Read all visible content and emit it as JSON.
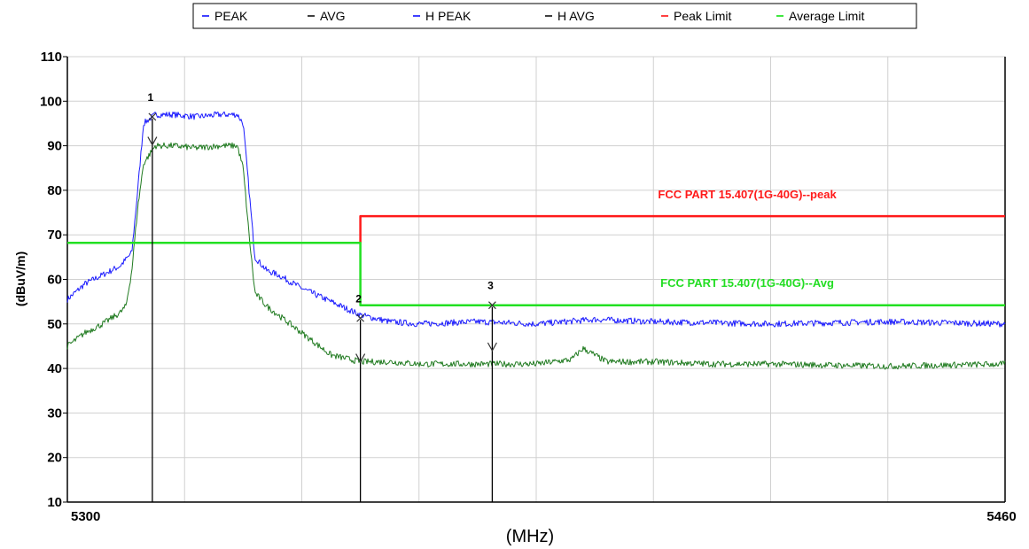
{
  "chart_data": {
    "type": "line",
    "xlabel": "(MHz)",
    "ylabel": "(dBuV/m)",
    "xlim": [
      5300,
      5460
    ],
    "ylim": [
      10,
      110
    ],
    "x_ticks": [
      "5300",
      "5460"
    ],
    "y_ticks": [
      "10",
      "20",
      "30",
      "40",
      "50",
      "60",
      "70",
      "80",
      "90",
      "100",
      "110"
    ],
    "grid": true,
    "legend_position": "top",
    "legend": [
      {
        "label": "PEAK",
        "color": "#0000ff"
      },
      {
        "label": "AVG",
        "color": "#000000"
      },
      {
        "label": "H PEAK",
        "color": "#0000ff"
      },
      {
        "label": "H AVG",
        "color": "#000000"
      },
      {
        "label": "Peak Limit",
        "color": "#ff0000"
      },
      {
        "label": "Average Limit",
        "color": "#00e000"
      }
    ],
    "series": [
      {
        "name": "H PEAK",
        "color": "#1a1aff",
        "x": [
          5300,
          5303,
          5306,
          5309,
          5311,
          5312,
          5313,
          5315,
          5318,
          5322,
          5326,
          5329,
          5330,
          5331,
          5332,
          5334,
          5336,
          5340,
          5345,
          5350,
          5355,
          5360,
          5370,
          5380,
          5390,
          5400,
          5420,
          5440,
          5460
        ],
        "y": [
          55.5,
          59,
          61,
          63,
          66,
          80,
          95,
          97,
          97,
          96.5,
          97,
          97,
          95,
          80,
          65,
          62,
          61,
          58,
          55,
          52,
          50.5,
          50,
          50.5,
          50,
          51,
          50.5,
          50,
          50.5,
          50
        ]
      },
      {
        "name": "H AVG",
        "color": "#1f7a1f",
        "x": [
          5300,
          5303,
          5306,
          5309,
          5310,
          5311,
          5312,
          5313,
          5315,
          5318,
          5322,
          5326,
          5329,
          5330,
          5331,
          5332,
          5334,
          5337,
          5340,
          5345,
          5350,
          5355,
          5360,
          5370,
          5380,
          5386,
          5388,
          5390,
          5392,
          5394,
          5400,
          5410,
          5420,
          5440,
          5460
        ],
        "y": [
          45,
          48,
          50,
          52.5,
          54,
          62,
          76,
          86,
          90,
          90,
          89.5,
          90,
          90,
          85,
          70,
          57,
          54,
          51,
          48,
          43,
          41.5,
          41.5,
          41,
          41,
          41,
          42,
          44.5,
          43,
          41.5,
          41.5,
          41.5,
          41,
          41,
          40.5,
          41
        ]
      },
      {
        "name": "Peak Limit",
        "color": "#ff1a1a",
        "x": [
          5350,
          5350,
          5460
        ],
        "y": [
          68.2,
          74.2,
          74.2
        ]
      },
      {
        "name": "Average Limit",
        "color": "#22e022",
        "x": [
          5300,
          5350,
          5350,
          5460
        ],
        "y": [
          68.2,
          68.2,
          54.2,
          54.2
        ]
      }
    ],
    "markers": [
      {
        "label": "1",
        "x": 5314.5,
        "y": 96.5,
        "y2": 90.2
      },
      {
        "label": "2",
        "x": 5350,
        "y": 51.3,
        "y2": 41.5
      },
      {
        "label": "3",
        "x": 5372.5,
        "y": 54.2,
        "y2": 44.0
      }
    ],
    "annotations": [
      {
        "text": "FCC PART 15.407(1G-40G)--peak",
        "x": 5416,
        "y": 78.2,
        "color": "#ff1a1a"
      },
      {
        "text": "FCC PART 15.407(1G-40G)--Avg",
        "x": 5416,
        "y": 58.3,
        "color": "#22dd22"
      }
    ]
  }
}
